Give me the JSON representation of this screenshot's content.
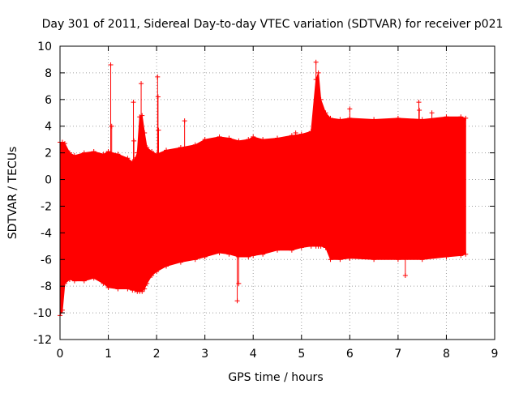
{
  "chart_data": {
    "type": "scatter",
    "title": "Day 301 of 2011, Sidereal Day-to-day VTEC variation (SDTVAR) for receiver p021",
    "xlabel": "GPS time / hours",
    "ylabel": "SDTVAR / TECUs",
    "xlim": [
      0,
      9
    ],
    "ylim": [
      -12,
      10
    ],
    "xticks": [
      "0",
      "1",
      "2",
      "3",
      "4",
      "5",
      "6",
      "7",
      "8",
      "9"
    ],
    "yticks": [
      "-12",
      "-10",
      "-8",
      "-6",
      "-4",
      "-2",
      "0",
      "2",
      "4",
      "6",
      "8",
      "10"
    ],
    "grid": true,
    "color": "#ff0000",
    "marker": "+",
    "series": [
      {
        "name": "SDTVAR",
        "envelope_x": [
          0.0,
          0.05,
          0.1,
          0.2,
          0.3,
          0.5,
          0.7,
          0.9,
          1.0,
          1.2,
          1.4,
          1.5,
          1.55,
          1.6,
          1.65,
          1.7,
          1.75,
          1.8,
          1.9,
          2.0,
          2.2,
          2.5,
          2.8,
          3.0,
          3.3,
          3.5,
          3.7,
          3.9,
          4.0,
          4.2,
          4.5,
          4.8,
          5.0,
          5.2,
          5.3,
          5.35,
          5.4,
          5.5,
          5.6,
          5.8,
          6.0,
          6.5,
          7.0,
          7.5,
          8.0,
          8.3,
          8.4
        ],
        "envelope_upper": [
          2.8,
          2.8,
          2.7,
          2.0,
          1.8,
          2.0,
          2.1,
          1.9,
          2.1,
          1.9,
          1.6,
          1.3,
          1.5,
          2.0,
          4.7,
          4.8,
          3.5,
          2.4,
          2.1,
          1.9,
          2.2,
          2.4,
          2.6,
          3.0,
          3.2,
          3.1,
          2.9,
          3.0,
          3.2,
          3.0,
          3.1,
          3.3,
          3.4,
          3.6,
          7.5,
          8.0,
          6.0,
          5.0,
          4.6,
          4.5,
          4.6,
          4.5,
          4.6,
          4.5,
          4.7,
          4.7,
          4.6
        ],
        "envelope_lower": [
          -10.2,
          -9.8,
          -7.8,
          -7.5,
          -7.6,
          -7.6,
          -7.4,
          -7.8,
          -8.1,
          -8.2,
          -8.2,
          -8.3,
          -8.3,
          -8.4,
          -8.4,
          -8.4,
          -8.2,
          -7.8,
          -7.2,
          -6.9,
          -6.5,
          -6.2,
          -6.0,
          -5.8,
          -5.5,
          -5.6,
          -5.8,
          -5.8,
          -5.7,
          -5.6,
          -5.3,
          -5.3,
          -5.1,
          -5.0,
          -5.0,
          -5.0,
          -5.0,
          -5.1,
          -6.0,
          -6.0,
          -5.9,
          -6.0,
          -6.0,
          -6.0,
          -5.8,
          -5.7,
          -5.6
        ],
        "spikes": [
          {
            "x": 1.05,
            "y": 8.6
          },
          {
            "x": 1.07,
            "y": 4.0
          },
          {
            "x": 1.52,
            "y": 5.8
          },
          {
            "x": 1.53,
            "y": 2.9
          },
          {
            "x": 1.68,
            "y": 7.2
          },
          {
            "x": 2.02,
            "y": 7.7
          },
          {
            "x": 2.03,
            "y": 6.2
          },
          {
            "x": 2.04,
            "y": 3.7
          },
          {
            "x": 2.58,
            "y": 4.4
          },
          {
            "x": 3.67,
            "y": -9.1
          },
          {
            "x": 3.7,
            "y": -7.8
          },
          {
            "x": 4.88,
            "y": 3.5
          },
          {
            "x": 5.3,
            "y": 8.8
          },
          {
            "x": 6.0,
            "y": 5.3
          },
          {
            "x": 7.15,
            "y": -7.2
          },
          {
            "x": 7.43,
            "y": 5.8
          },
          {
            "x": 7.44,
            "y": 5.2
          },
          {
            "x": 7.7,
            "y": 5.0
          }
        ]
      }
    ]
  }
}
